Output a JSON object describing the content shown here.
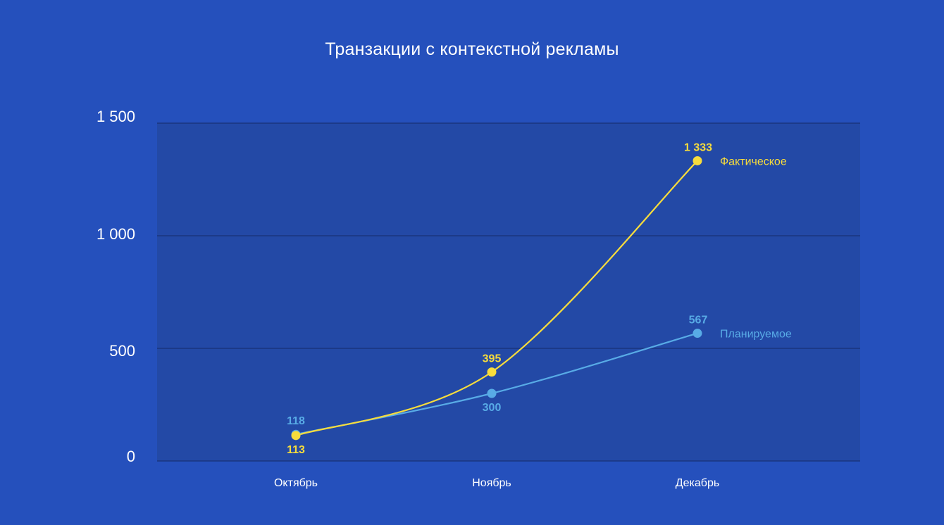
{
  "chart_data": {
    "type": "line",
    "title": "Транзакции с контекстной рекламы",
    "xlabel": "",
    "ylabel": "",
    "categories": [
      "Октябрь",
      "Ноябрь",
      "Декабрь"
    ],
    "ylim": [
      0,
      1500
    ],
    "yticks": [
      0,
      500,
      1000,
      1500
    ],
    "ytick_labels": [
      "0",
      "500",
      "1 000",
      "1 500"
    ],
    "grid": true,
    "legend": "end-of-line labels",
    "series": [
      {
        "name": "Фактическое",
        "color": "#f7dc3c",
        "values": [
          113,
          395,
          1333
        ],
        "labels": [
          "113",
          "395",
          "1 333"
        ],
        "label_side": [
          "below",
          "above",
          "above"
        ]
      },
      {
        "name": "Планируемое",
        "color": "#58abe6",
        "values": [
          118,
          300,
          567
        ],
        "labels": [
          "118",
          "300",
          "567"
        ],
        "label_side": [
          "above",
          "below",
          "above"
        ]
      }
    ],
    "colors": {
      "background": "#2550bc",
      "plot_area": "#2349a6",
      "grid": "#1a357f"
    }
  }
}
